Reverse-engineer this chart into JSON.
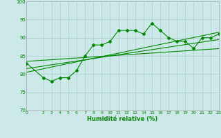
{
  "xlabel": "Humidité relative (%)",
  "bg_color": "#cce8e8",
  "grid_color": "#aacccc",
  "line_color": "#008800",
  "xlim": [
    0,
    23
  ],
  "ylim": [
    70,
    100
  ],
  "yticks": [
    70,
    75,
    80,
    85,
    90,
    95,
    100
  ],
  "xticks": [
    0,
    2,
    3,
    4,
    5,
    6,
    7,
    8,
    9,
    10,
    11,
    12,
    13,
    14,
    15,
    16,
    17,
    18,
    19,
    20,
    21,
    22,
    23
  ],
  "main_x": [
    0,
    2,
    3,
    4,
    5,
    6,
    7,
    8,
    9,
    10,
    11,
    12,
    13,
    14,
    15,
    16,
    17,
    18,
    19,
    20,
    21,
    22,
    23
  ],
  "main_y": [
    83,
    79,
    78,
    79,
    79,
    81,
    85,
    88,
    88,
    89,
    92,
    92,
    92,
    91,
    94,
    92,
    90,
    89,
    89,
    87,
    90,
    90,
    91
  ],
  "trend_lines": [
    {
      "x": [
        0,
        23
      ],
      "y": [
        83.5,
        87.0
      ]
    },
    {
      "x": [
        0,
        23
      ],
      "y": [
        81.5,
        89.5
      ]
    },
    {
      "x": [
        0,
        23
      ],
      "y": [
        80.5,
        91.5
      ]
    }
  ]
}
